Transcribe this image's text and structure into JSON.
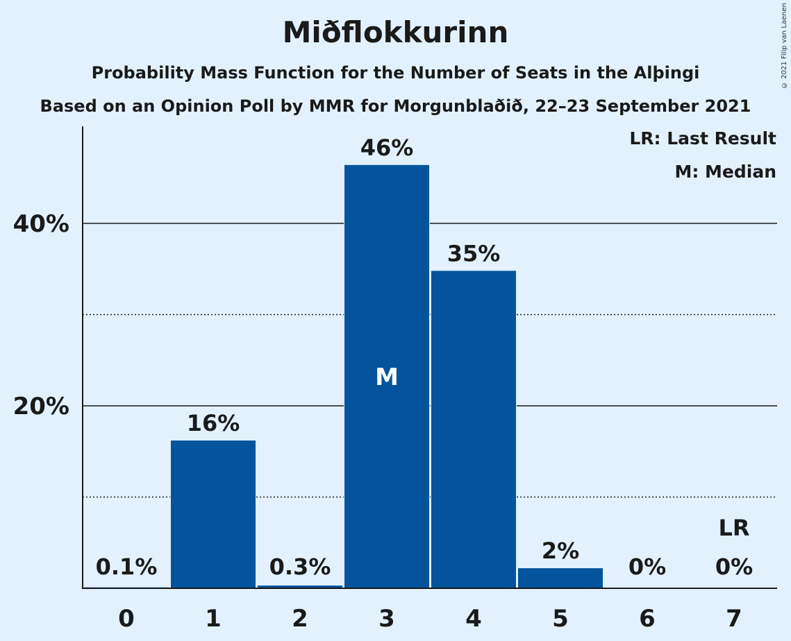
{
  "header": {
    "title": "Miðflokkurinn",
    "subtitle": "Probability Mass Function for the Number of Seats in the Alþingi",
    "subtitle2": "Based on an Opinion Poll by MMR for Morgunblaðið, 22–23 September 2021"
  },
  "legend": {
    "last_result": "LR: Last Result",
    "median": "M: Median"
  },
  "copyright": "© 2021 Filip van Laenen",
  "colors": {
    "bar": "#03549c",
    "background": "#e3f1ff",
    "text": "#1a1a1a"
  },
  "chart_data": {
    "type": "bar",
    "title": "Miðflokkurinn",
    "subtitle": "Probability Mass Function for the Number of Seats in the Alþingi",
    "categories": [
      "0",
      "1",
      "2",
      "3",
      "4",
      "5",
      "6",
      "7"
    ],
    "values": [
      0.1,
      16.2,
      0.3,
      46.4,
      34.8,
      2.2,
      0.0,
      0.0
    ],
    "value_labels": [
      "0.1%",
      "16%",
      "0.3%",
      "46%",
      "35%",
      "2%",
      "0%",
      "0%"
    ],
    "ylim": [
      0,
      50
    ],
    "y_ticks": [
      20,
      40
    ],
    "y_tick_labels": [
      "20%",
      "40%"
    ],
    "y_minor_gridlines": [
      10,
      30
    ],
    "median_index": 3,
    "median_marker": "M",
    "last_result_index": 7,
    "last_result_marker": "LR",
    "grid": true,
    "legend_position": "top-right"
  }
}
